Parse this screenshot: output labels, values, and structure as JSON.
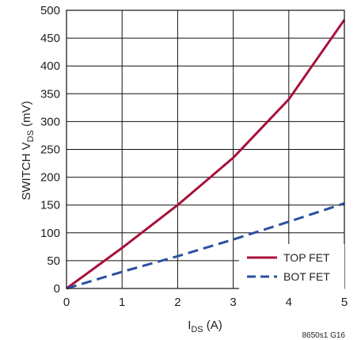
{
  "chart_data": {
    "type": "line",
    "xlabel": {
      "main": "I",
      "sub": "DS",
      "unit": " (A)"
    },
    "ylabel": {
      "main": "SWITCH V",
      "sub": "DS",
      "unit": " (mV)"
    },
    "xlim": [
      0,
      5
    ],
    "ylim": [
      0,
      500
    ],
    "x_ticks": [
      "0",
      "1",
      "2",
      "3",
      "4",
      "5"
    ],
    "y_ticks": [
      "0",
      "50",
      "100",
      "150",
      "200",
      "250",
      "300",
      "350",
      "400",
      "450",
      "500"
    ],
    "grid": true,
    "legend_position": "bottom-right",
    "series": [
      {
        "name": "TOP FET",
        "color": "#a8123a",
        "style": "solid",
        "x": [
          0,
          1,
          2,
          3,
          4,
          5
        ],
        "y": [
          0,
          73,
          150,
          235,
          340,
          483
        ]
      },
      {
        "name": "BOT FET",
        "color": "#2b4fa0",
        "style": "dashed",
        "x": [
          0,
          1,
          2,
          3,
          4,
          5
        ],
        "y": [
          0,
          30,
          58,
          88,
          120,
          153
        ]
      }
    ],
    "footnote": "8650s1 G16"
  }
}
